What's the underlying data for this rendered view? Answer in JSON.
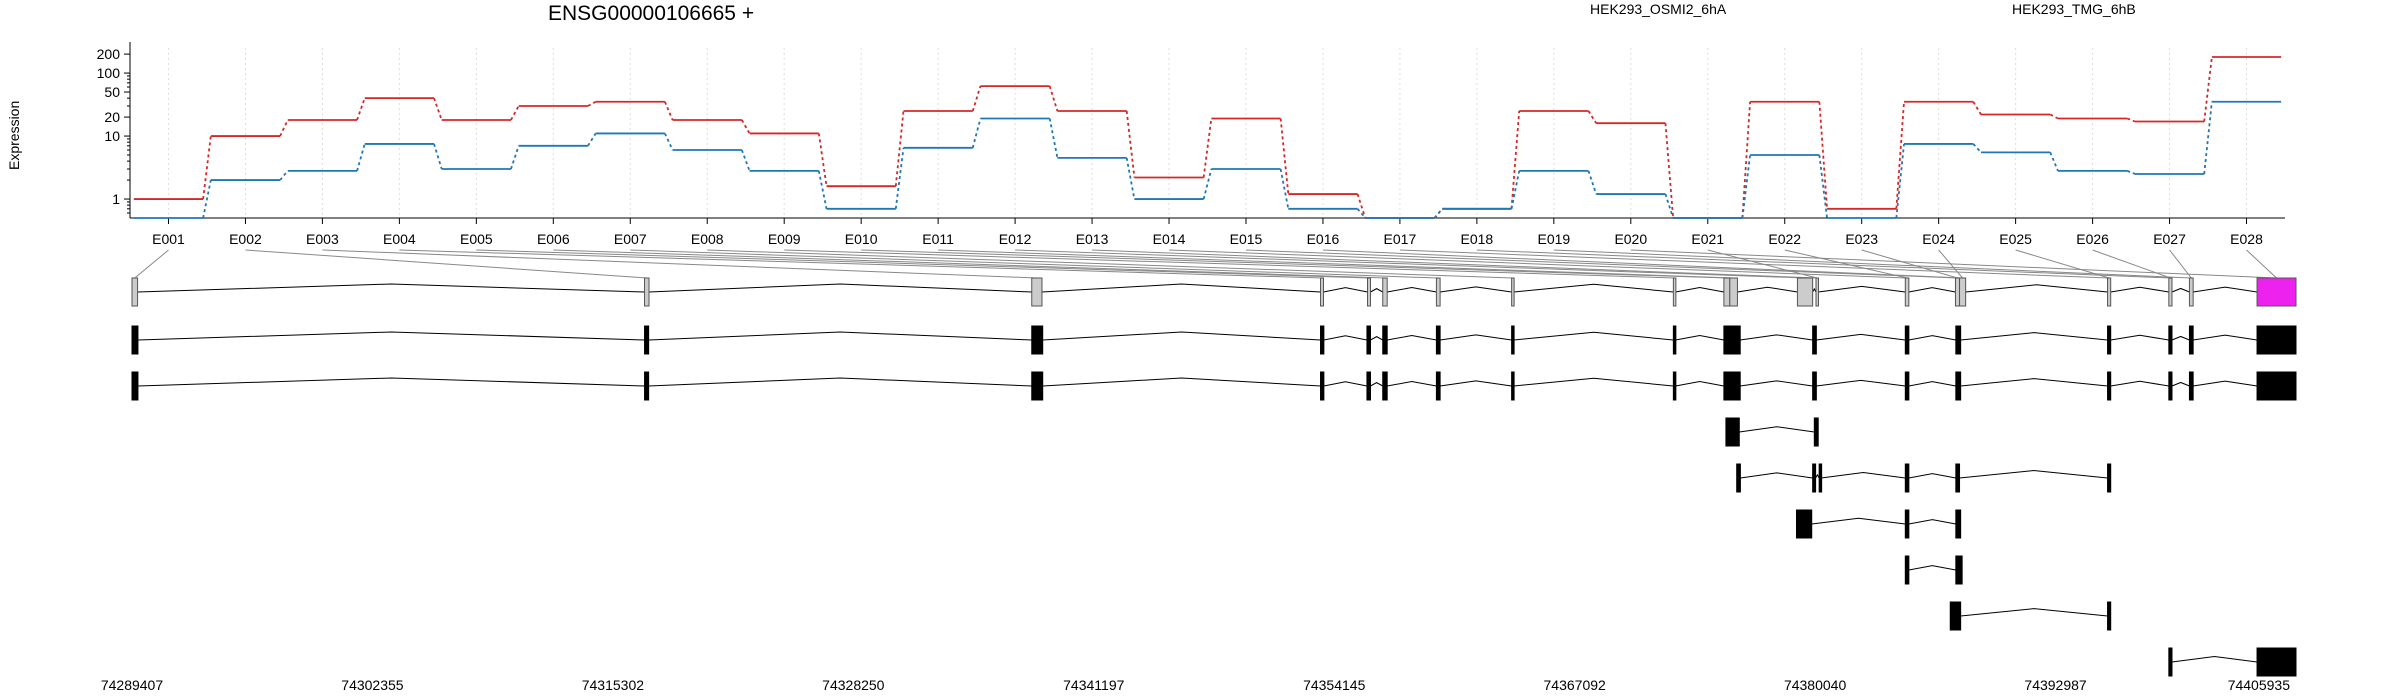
{
  "colors": {
    "series_a": "#d62728",
    "series_b": "#1f77b4",
    "highlight_exon": "#ee22ee",
    "exon_fill": "#000000",
    "bin_fill": "#cccccc"
  },
  "chart_data": {
    "type": "line",
    "title": "ENSG00000106665 +",
    "ylabel": "Expression",
    "yscale": "log",
    "ylim": [
      0.5,
      250
    ],
    "yticks": [
      1,
      10,
      20,
      50,
      100,
      200
    ],
    "ytick_labels": [
      "1",
      "10",
      "20",
      "50",
      "100",
      "200"
    ],
    "grid": "vertical dotted",
    "legend": "top-right",
    "categories": [
      "E001",
      "E002",
      "E003",
      "E004",
      "E005",
      "E006",
      "E007",
      "E008",
      "E009",
      "E010",
      "E011",
      "E012",
      "E013",
      "E014",
      "E015",
      "E016",
      "E017",
      "E018",
      "E019",
      "E020",
      "E021",
      "E022",
      "E023",
      "E024",
      "E025",
      "E026",
      "E027",
      "E028"
    ],
    "series": [
      {
        "name": "HEK293_OSMI2_6hA",
        "values": [
          1,
          10,
          18,
          40,
          18,
          30,
          35,
          18,
          11,
          1.6,
          25,
          62,
          25,
          2.2,
          19,
          1.2,
          0.5,
          0.7,
          25,
          16,
          0.5,
          35,
          0.7,
          35,
          22,
          19,
          17,
          180
        ]
      },
      {
        "name": "HEK293_TMG_6hB",
        "values": [
          0.5,
          2,
          2.8,
          7.5,
          3,
          7,
          11,
          6,
          2.8,
          0.7,
          6.5,
          19,
          4.5,
          1,
          3,
          0.7,
          0.5,
          0.7,
          2.8,
          1.2,
          0.5,
          5,
          0.5,
          7.5,
          5.5,
          2.8,
          2.5,
          35
        ]
      }
    ],
    "genomic_axis": {
      "start": 74289407,
      "end": 74405935,
      "tick_labels": [
        "74289407",
        "74302355",
        "74315302",
        "74328250",
        "74341197",
        "74354145",
        "74367092",
        "74380040",
        "74392987",
        "74405935"
      ]
    },
    "gene_model_bins": [
      {
        "start": 74289407,
        "end": 74289707
      },
      {
        "start": 74317007,
        "end": 74317247
      },
      {
        "start": 74337857,
        "end": 74338407
      },
      {
        "start": 74353407,
        "end": 74353567
      },
      {
        "start": 74355937,
        "end": 74356097
      },
      {
        "start": 74356757,
        "end": 74356997
      },
      {
        "start": 74359647,
        "end": 74359847
      },
      {
        "start": 74363697,
        "end": 74363827
      },
      {
        "start": 74372407,
        "end": 74372527
      },
      {
        "start": 74375127,
        "end": 74375447
      },
      {
        "start": 74375447,
        "end": 74375857
      },
      {
        "start": 74379087,
        "end": 74379907
      },
      {
        "start": 74380087,
        "end": 74380207
      },
      {
        "start": 74384897,
        "end": 74385087
      },
      {
        "start": 74387597,
        "end": 74387817
      },
      {
        "start": 74387817,
        "end": 74388147
      },
      {
        "start": 74395787,
        "end": 74395957
      },
      {
        "start": 74399087,
        "end": 74399257
      },
      {
        "start": 74400197,
        "end": 74400397
      },
      {
        "start": 74403837,
        "end": 74405935
      }
    ],
    "highlighted_bin": 19,
    "transcripts": [
      [
        [
          74289407,
          74289727
        ],
        [
          74317007,
          74317227
        ],
        [
          74337857,
          74338447
        ],
        [
          74353407,
          74353587
        ],
        [
          74355907,
          74356097
        ],
        [
          74356757,
          74356997
        ],
        [
          74359647,
          74359847
        ],
        [
          74363697,
          74363827
        ],
        [
          74372407,
          74372527
        ],
        [
          74375127,
          74376007
        ],
        [
          74379907,
          74380107
        ],
        [
          74384897,
          74385087
        ],
        [
          74387617,
          74387877
        ],
        [
          74395787,
          74395957
        ],
        [
          74399087,
          74399257
        ],
        [
          74400197,
          74400397
        ],
        [
          74403837,
          74405935
        ]
      ],
      [
        [
          74289407,
          74289727
        ],
        [
          74317007,
          74317227
        ],
        [
          74337857,
          74338447
        ],
        [
          74353407,
          74353587
        ],
        [
          74355907,
          74356097
        ],
        [
          74356757,
          74356997
        ],
        [
          74359647,
          74359847
        ],
        [
          74363697,
          74363827
        ],
        [
          74372407,
          74372527
        ],
        [
          74375127,
          74376007
        ],
        [
          74379907,
          74380107
        ],
        [
          74384897,
          74385087
        ],
        [
          74387617,
          74387877
        ],
        [
          74395787,
          74395957
        ],
        [
          74399087,
          74399257
        ],
        [
          74400197,
          74400397
        ],
        [
          74403837,
          74405935
        ]
      ],
      [
        [
          74375237,
          74375957
        ],
        [
          74379997,
          74380207
        ]
      ],
      [
        [
          74375817,
          74376017
        ],
        [
          74379907,
          74380067
        ],
        [
          74380257,
          74380367
        ],
        [
          74384897,
          74385087
        ],
        [
          74387617,
          74387817
        ],
        [
          74395787,
          74395957
        ]
      ],
      [
        [
          74379037,
          74379857
        ],
        [
          74384897,
          74385087
        ],
        [
          74387617,
          74387877
        ]
      ],
      [
        [
          74384897,
          74385087
        ],
        [
          74387617,
          74387957
        ]
      ],
      [
        [
          74387317,
          74387877
        ],
        [
          74395787,
          74395957
        ]
      ],
      [
        [
          74399087,
          74399257
        ],
        [
          74403837,
          74405935
        ]
      ]
    ]
  }
}
